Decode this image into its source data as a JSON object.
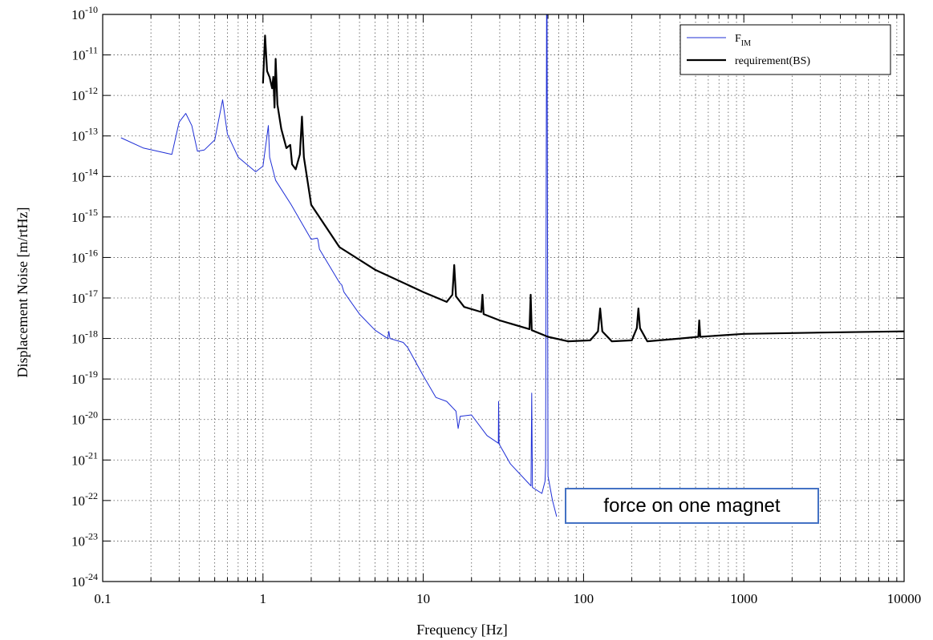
{
  "chart_data": {
    "type": "line",
    "xlabel": "Frequency [Hz]",
    "ylabel": "Displacement Noise [m/rtHz]",
    "xscale": "log",
    "yscale": "log",
    "xlim": [
      0.1,
      10000
    ],
    "ylim": [
      1e-24,
      1e-10
    ],
    "grid": true,
    "legend_position": "top-right",
    "x_tick_labels": [
      "0.1",
      "1",
      "10",
      "100",
      "1000",
      "10000"
    ],
    "y_tick_labels": [
      {
        "base": "10",
        "exp": "-24"
      },
      {
        "base": "10",
        "exp": "-23"
      },
      {
        "base": "10",
        "exp": "-22"
      },
      {
        "base": "10",
        "exp": "-21"
      },
      {
        "base": "10",
        "exp": "-20"
      },
      {
        "base": "10",
        "exp": "-19"
      },
      {
        "base": "10",
        "exp": "-18"
      },
      {
        "base": "10",
        "exp": "-17"
      },
      {
        "base": "10",
        "exp": "-16"
      },
      {
        "base": "10",
        "exp": "-15"
      },
      {
        "base": "10",
        "exp": "-14"
      },
      {
        "base": "10",
        "exp": "-13"
      },
      {
        "base": "10",
        "exp": "-12"
      },
      {
        "base": "10",
        "exp": "-11"
      },
      {
        "base": "10",
        "exp": "-10"
      }
    ],
    "annotation": "force on one magnet",
    "series": [
      {
        "name": "F_IM",
        "legend": {
          "base": "F",
          "sub": "IM"
        },
        "color": "#1f2fd6",
        "points": [
          [
            0.13,
            9e-14
          ],
          [
            0.18,
            5e-14
          ],
          [
            0.27,
            3.5e-14
          ],
          [
            0.3,
            2.2e-13
          ],
          [
            0.33,
            3.6e-13
          ],
          [
            0.36,
            1.8e-13
          ],
          [
            0.39,
            4.2e-14
          ],
          [
            0.43,
            4.5e-14
          ],
          [
            0.5,
            8e-14
          ],
          [
            0.56,
            7.8e-13
          ],
          [
            0.6,
            1.1e-13
          ],
          [
            0.7,
            3e-14
          ],
          [
            0.9,
            1.3e-14
          ],
          [
            1.0,
            1.8e-14
          ],
          [
            1.08,
            1.8e-13
          ],
          [
            1.1,
            3e-14
          ],
          [
            1.2,
            8e-15
          ],
          [
            1.5,
            2e-15
          ],
          [
            2.0,
            2.8e-16
          ],
          [
            2.18,
            3e-16
          ],
          [
            2.2,
            2.8e-16
          ],
          [
            2.25,
            1.6e-16
          ],
          [
            3.0,
            2.4e-17
          ],
          [
            3.1,
            2.1e-17
          ],
          [
            3.2,
            1.4e-17
          ],
          [
            4.0,
            4e-18
          ],
          [
            5.0,
            1.6e-18
          ],
          [
            6.0,
            1e-18
          ],
          [
            6.1,
            1.5e-18
          ],
          [
            6.2,
            1e-18
          ],
          [
            7.5,
            8e-19
          ],
          [
            8.0,
            6e-19
          ],
          [
            10.0,
            1.2e-19
          ],
          [
            12.0,
            3.5e-20
          ],
          [
            14.0,
            2.8e-20
          ],
          [
            16.0,
            1.6e-20
          ],
          [
            16.5,
            6e-21
          ],
          [
            17.0,
            1.2e-20
          ],
          [
            20.0,
            1.3e-20
          ],
          [
            25.0,
            4e-21
          ],
          [
            29.4,
            2.6e-21
          ],
          [
            29.5,
            2.8e-20
          ],
          [
            29.7,
            2.5e-21
          ],
          [
            35.0,
            8e-22
          ],
          [
            47.0,
            2.3e-22
          ],
          [
            47.5,
            4.5e-20
          ],
          [
            48.0,
            2.1e-22
          ],
          [
            55.0,
            1.5e-22
          ],
          [
            57.5,
            3e-22
          ],
          [
            58.0,
            7e-22
          ],
          [
            58.8,
            1e-10
          ],
          [
            59.2,
            1e-10
          ],
          [
            60.0,
            4e-22
          ],
          [
            64.0,
            1e-22
          ],
          [
            68.0,
            4e-23
          ]
        ]
      },
      {
        "name": "requirement(BS)",
        "legend": {
          "base": "requirement(BS)",
          "sub": ""
        },
        "color": "#000000",
        "points": [
          [
            1.0,
            2e-12
          ],
          [
            1.03,
            3e-11
          ],
          [
            1.06,
            4e-12
          ],
          [
            1.1,
            2.8e-12
          ],
          [
            1.14,
            1.5e-12
          ],
          [
            1.16,
            2.9e-12
          ],
          [
            1.18,
            5e-13
          ],
          [
            1.2,
            8e-12
          ],
          [
            1.23,
            6e-13
          ],
          [
            1.3,
            1.5e-13
          ],
          [
            1.4,
            5e-14
          ],
          [
            1.48,
            6e-14
          ],
          [
            1.52,
            2e-14
          ],
          [
            1.6,
            1.5e-14
          ],
          [
            1.7,
            3.5e-14
          ],
          [
            1.75,
            3e-13
          ],
          [
            1.8,
            3e-14
          ],
          [
            2.0,
            2e-15
          ],
          [
            3.0,
            1.8e-16
          ],
          [
            5.0,
            5e-17
          ],
          [
            10.0,
            1.4e-17
          ],
          [
            14.0,
            8e-18
          ],
          [
            15.2,
            1.2e-17
          ],
          [
            15.6,
            6.5e-17
          ],
          [
            16.0,
            1.1e-17
          ],
          [
            18.0,
            6e-18
          ],
          [
            23.0,
            4.5e-18
          ],
          [
            23.4,
            1.2e-17
          ],
          [
            23.8,
            4e-18
          ],
          [
            30.0,
            2.8e-18
          ],
          [
            46.0,
            1.7e-18
          ],
          [
            46.8,
            1.2e-17
          ],
          [
            47.5,
            1.6e-18
          ],
          [
            60.0,
            1.1e-18
          ],
          [
            80.0,
            8.5e-19
          ],
          [
            110.0,
            9e-19
          ],
          [
            123.0,
            1.5e-18
          ],
          [
            127.0,
            5.5e-18
          ],
          [
            131.0,
            1.5e-18
          ],
          [
            150.0,
            8.5e-19
          ],
          [
            200.0,
            9e-19
          ],
          [
            215.0,
            1.8e-18
          ],
          [
            220.0,
            5.5e-18
          ],
          [
            225.0,
            1.8e-18
          ],
          [
            250.0,
            8.5e-19
          ],
          [
            400.0,
            1e-18
          ],
          [
            520.0,
            1.1e-18
          ],
          [
            527.0,
            2.8e-18
          ],
          [
            535.0,
            1.1e-18
          ],
          [
            1000.0,
            1.3e-18
          ],
          [
            3000.0,
            1.4e-18
          ],
          [
            10000.0,
            1.5e-18
          ]
        ]
      }
    ]
  }
}
